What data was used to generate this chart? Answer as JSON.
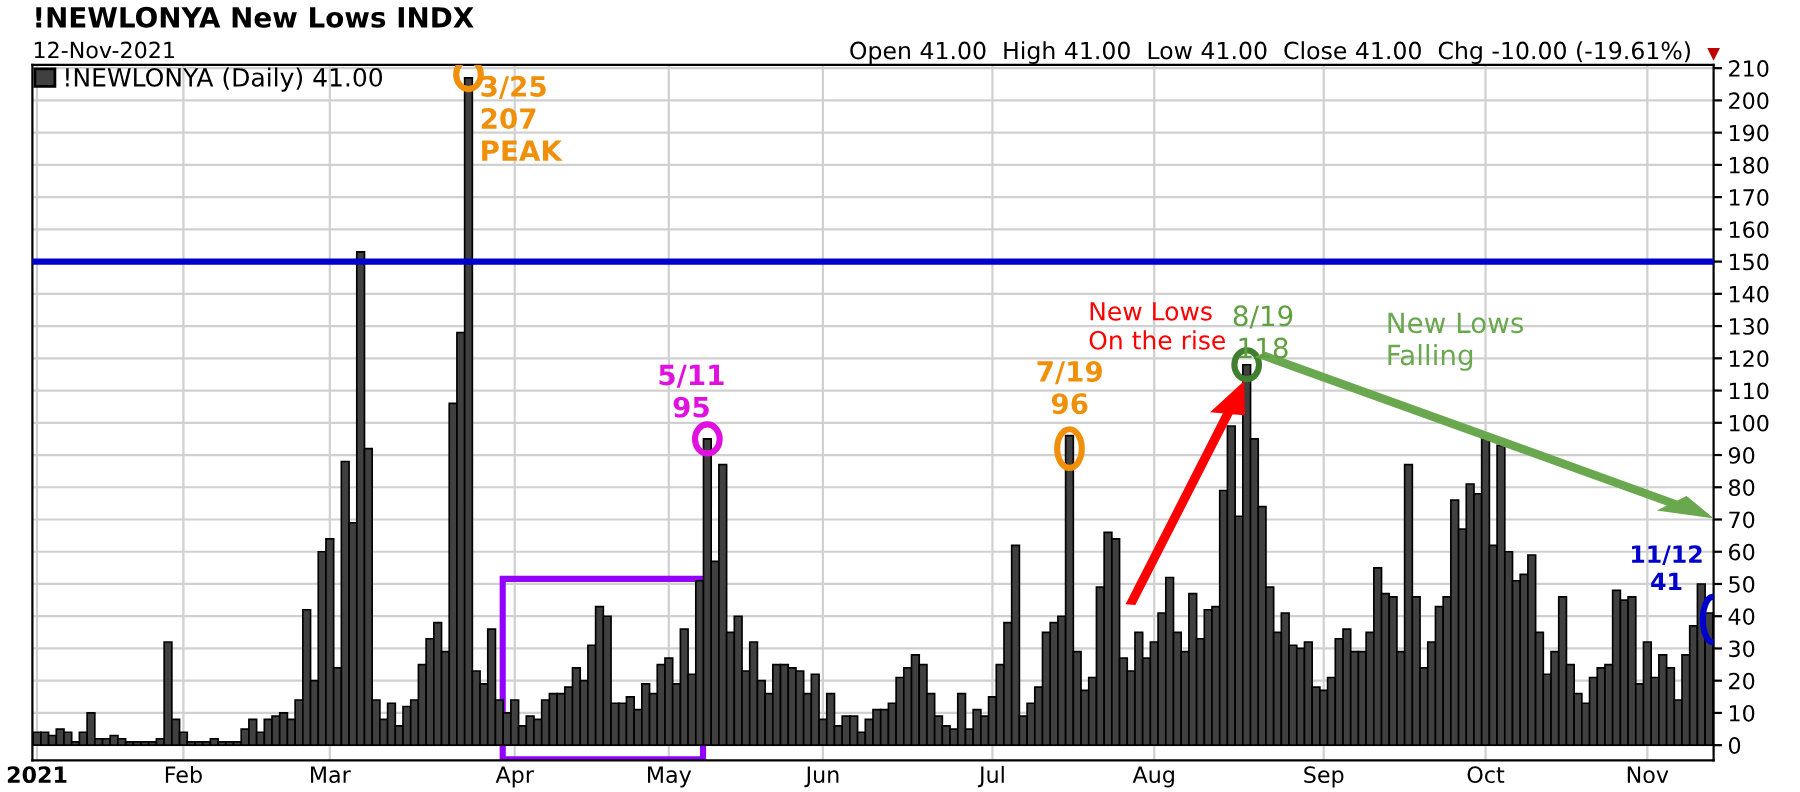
{
  "chart_data": {
    "type": "bar",
    "title": "!NEWLONYA New Lows INDX",
    "subtitle": "12-Nov-2021",
    "categories": [
      "2021",
      null,
      null,
      null,
      null,
      null,
      null,
      null,
      null,
      null,
      null,
      null,
      null,
      null,
      null,
      null,
      null,
      null,
      null,
      "Feb",
      null,
      null,
      null,
      null,
      null,
      null,
      null,
      null,
      null,
      null,
      null,
      null,
      null,
      null,
      null,
      null,
      null,
      null,
      "Mar",
      null,
      null,
      null,
      null,
      null,
      null,
      null,
      null,
      null,
      null,
      null,
      null,
      null,
      null,
      null,
      null,
      null,
      null,
      null,
      null,
      null,
      null,
      null,
      "Apr",
      null,
      null,
      null,
      null,
      null,
      null,
      null,
      null,
      null,
      null,
      null,
      null,
      null,
      null,
      null,
      null,
      null,
      null,
      null,
      "May",
      null,
      null,
      null,
      null,
      null,
      null,
      null,
      null,
      null,
      null,
      null,
      null,
      null,
      null,
      null,
      null,
      null,
      null,
      null,
      "Jun",
      null,
      null,
      null,
      null,
      null,
      null,
      null,
      null,
      null,
      null,
      null,
      null,
      null,
      null,
      null,
      null,
      null,
      null,
      null,
      null,
      null,
      "Jul",
      null,
      null,
      null,
      null,
      null,
      null,
      null,
      null,
      null,
      null,
      null,
      null,
      null,
      null,
      null,
      null,
      null,
      null,
      null,
      null,
      "Aug",
      null,
      null,
      null,
      null,
      null,
      null,
      null,
      null,
      null,
      null,
      null,
      null,
      null,
      null,
      null,
      null,
      null,
      null,
      null,
      null,
      null,
      "Sep",
      null,
      null,
      null,
      null,
      null,
      null,
      null,
      null,
      null,
      null,
      null,
      null,
      null,
      null,
      null,
      null,
      null,
      null,
      null,
      null,
      "Oct",
      null,
      null,
      null,
      null,
      null,
      null,
      null,
      null,
      null,
      null,
      null,
      null,
      null,
      null,
      null,
      null,
      null,
      null,
      null,
      null,
      "Nov",
      null,
      null,
      null,
      null,
      null,
      null,
      null,
      null
    ],
    "series": [
      {
        "name": "!NEWLONYA (Daily) 41.00",
        "color": "#404040",
        "values": [
          4,
          4,
          3,
          5,
          4,
          1,
          4,
          10,
          2,
          2,
          3,
          2,
          1,
          1,
          1,
          1,
          2,
          32,
          8,
          4,
          1,
          1,
          1,
          2,
          1,
          1,
          1,
          5,
          8,
          4,
          8,
          9,
          10,
          8,
          14,
          42,
          20,
          60,
          64,
          24,
          88,
          69,
          153,
          92,
          14,
          8,
          13,
          6,
          12,
          14,
          25,
          33,
          38,
          29,
          106,
          128,
          207,
          23,
          19,
          36,
          14,
          10,
          14,
          6,
          9,
          8,
          14,
          16,
          16,
          18,
          24,
          20,
          31,
          43,
          40,
          13,
          13,
          15,
          11,
          19,
          16,
          25,
          27,
          19,
          36,
          22,
          51,
          95,
          57,
          87,
          35,
          40,
          23,
          32,
          20,
          16,
          25,
          25,
          24,
          23,
          16,
          22,
          8,
          16,
          6,
          9,
          9,
          4,
          8,
          11,
          11,
          13,
          21,
          24,
          28,
          25,
          16,
          9,
          6,
          5,
          16,
          5,
          11,
          9,
          15,
          25,
          38,
          62,
          9,
          13,
          18,
          35,
          38,
          40,
          96,
          29,
          17,
          21,
          49,
          66,
          64,
          27,
          23,
          35,
          27,
          32,
          41,
          52,
          35,
          29,
          47,
          33,
          42,
          43,
          79,
          99,
          71,
          118,
          95,
          74,
          49,
          35,
          41,
          31,
          30,
          32,
          18,
          17,
          21,
          33,
          36,
          29,
          29,
          35,
          55,
          47,
          46,
          29,
          87,
          46,
          24,
          32,
          43,
          46,
          76,
          67,
          81,
          78,
          95,
          62,
          93,
          60,
          51,
          53,
          59,
          35,
          22,
          29,
          46,
          25,
          16,
          13,
          21,
          24,
          25,
          48,
          45,
          46,
          19,
          32,
          21,
          28,
          24,
          14,
          28,
          37,
          50,
          41
        ]
      }
    ],
    "ylim": [
      -4.7,
      211
    ],
    "yticks": [
      0,
      10,
      20,
      30,
      40,
      50,
      60,
      70,
      80,
      90,
      100,
      110,
      120,
      130,
      140,
      150,
      160,
      170,
      180,
      190,
      200,
      210
    ],
    "ref_lines": [
      {
        "axis": "y",
        "value": 150,
        "color": "#0000cc"
      }
    ],
    "grid": true,
    "legend": "top left",
    "annotations": [
      "Open 41.00  High 41.00  Low 41.00  Close 41.00  Chg -10.00 (-19.61%)",
      "3/25\n207\nPEAK",
      "5/11\n95",
      "7/19\n96",
      "New Lows\nOn the rise",
      "8/19\n118",
      "New Lows\nFalling",
      "11/12\n41",
      "▼"
    ]
  }
}
